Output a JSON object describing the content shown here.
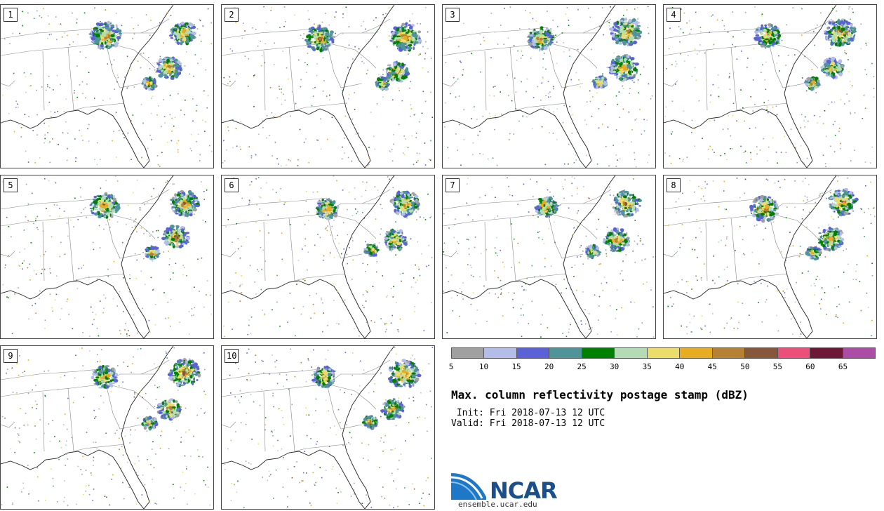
{
  "title": "Max. column reflectivity postage stamp (dBZ)",
  "init_label": " Init:",
  "init_value": "Fri 2018-07-13 12 UTC",
  "valid_label": "Valid:",
  "valid_value": "Fri 2018-07-13 12 UTC",
  "logo": {
    "text": "NCAR",
    "url": "ensemble.ucar.edu",
    "color": "#1a4f8a"
  },
  "panels": [
    "1",
    "2",
    "3",
    "4",
    "5",
    "6",
    "7",
    "8",
    "9",
    "10"
  ],
  "colorbar": {
    "ticks": [
      "5",
      "10",
      "15",
      "20",
      "25",
      "30",
      "35",
      "40",
      "45",
      "50",
      "55",
      "60",
      "65"
    ],
    "colors": [
      "#a0a0a0",
      "#b4bce8",
      "#5a62d8",
      "#4f9499",
      "#008000",
      "#b4dcb4",
      "#ecdc6c",
      "#e8ac22",
      "#b48232",
      "#86573a",
      "#ec507a",
      "#6e1838",
      "#ac4ca4"
    ]
  }
}
